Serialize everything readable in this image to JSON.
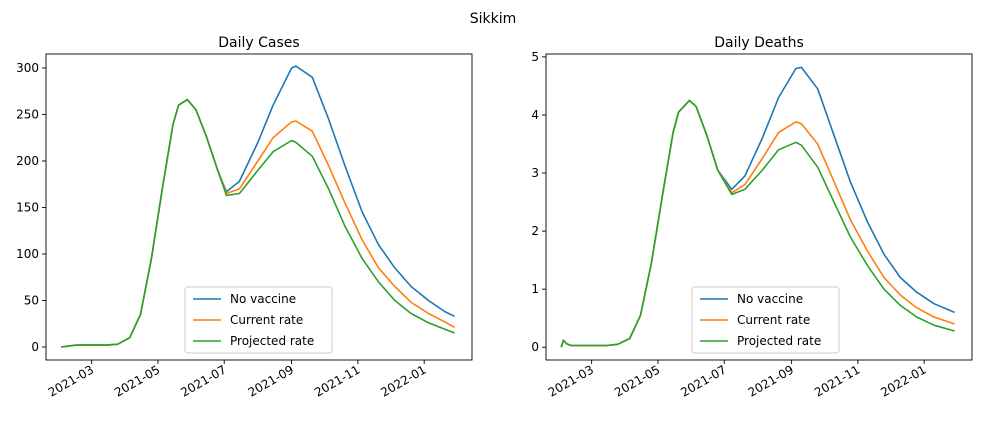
{
  "suptitle": "Sikkim",
  "legend_labels": [
    "No vaccine",
    "Current rate",
    "Projected rate"
  ],
  "colors": {
    "no_vaccine": "#1f77b4",
    "current_rate": "#ff7f0e",
    "projected_rate": "#2ca02c"
  },
  "chart_data": [
    {
      "type": "line",
      "title": "Daily Cases",
      "xlabel": "",
      "ylabel": "",
      "ylim": [
        -14,
        315
      ],
      "yticks": [
        0,
        50,
        100,
        150,
        200,
        250,
        300
      ],
      "xlim": [
        "2021-01-18",
        "2022-02-14"
      ],
      "xticks": [
        "2021-03",
        "2021-05",
        "2021-07",
        "2021-09",
        "2021-11",
        "2022-01"
      ],
      "x": [
        "2021-02-01",
        "2021-02-15",
        "2021-03-01",
        "2021-03-15",
        "2021-03-25",
        "2021-04-05",
        "2021-04-15",
        "2021-04-25",
        "2021-05-05",
        "2021-05-15",
        "2021-05-20",
        "2021-05-28",
        "2021-06-05",
        "2021-06-15",
        "2021-06-25",
        "2021-07-03",
        "2021-07-15",
        "2021-08-01",
        "2021-08-15",
        "2021-09-01",
        "2021-09-05",
        "2021-09-20",
        "2021-10-05",
        "2021-10-20",
        "2021-11-05",
        "2021-11-20",
        "2021-12-05",
        "2021-12-20",
        "2022-01-05",
        "2022-01-20",
        "2022-01-29"
      ],
      "series": [
        {
          "name": "No vaccine",
          "values": [
            0,
            2,
            2,
            2,
            3,
            10,
            35,
            95,
            170,
            240,
            260,
            266,
            255,
            225,
            190,
            167,
            178,
            220,
            260,
            300,
            302,
            290,
            245,
            195,
            145,
            110,
            85,
            65,
            50,
            38,
            33
          ]
        },
        {
          "name": "Current rate",
          "values": [
            0,
            2,
            2,
            2,
            3,
            10,
            35,
            95,
            170,
            240,
            260,
            266,
            255,
            225,
            190,
            165,
            170,
            200,
            225,
            242,
            243,
            232,
            195,
            155,
            115,
            85,
            65,
            48,
            36,
            27,
            21
          ]
        },
        {
          "name": "Projected rate",
          "values": [
            0,
            2,
            2,
            2,
            3,
            10,
            35,
            95,
            170,
            240,
            260,
            266,
            255,
            225,
            190,
            163,
            165,
            190,
            210,
            222,
            220,
            205,
            170,
            130,
            95,
            70,
            50,
            36,
            26,
            19,
            15
          ]
        }
      ],
      "legend": "lower center",
      "grid": false
    },
    {
      "type": "line",
      "title": "Daily Deaths",
      "xlabel": "",
      "ylabel": "",
      "ylim": [
        -0.22,
        5.05
      ],
      "yticks": [
        0,
        1,
        2,
        3,
        4,
        5
      ],
      "xlim": [
        "2021-01-18",
        "2022-02-14"
      ],
      "xticks": [
        "2021-03",
        "2021-05",
        "2021-07",
        "2021-09",
        "2021-11",
        "2022-01"
      ],
      "x": [
        "2021-02-01",
        "2021-02-03",
        "2021-02-06",
        "2021-02-10",
        "2021-02-15",
        "2021-03-01",
        "2021-03-15",
        "2021-03-25",
        "2021-04-05",
        "2021-04-15",
        "2021-04-25",
        "2021-05-05",
        "2021-05-15",
        "2021-05-20",
        "2021-05-30",
        "2021-06-05",
        "2021-06-15",
        "2021-06-25",
        "2021-07-08",
        "2021-07-20",
        "2021-08-05",
        "2021-08-20",
        "2021-09-05",
        "2021-09-10",
        "2021-09-25",
        "2021-10-10",
        "2021-10-25",
        "2021-11-10",
        "2021-11-25",
        "2021-12-10",
        "2021-12-25",
        "2022-01-10",
        "2022-01-29"
      ],
      "series": [
        {
          "name": "No vaccine",
          "values": [
            0,
            0.12,
            0.06,
            0.03,
            0.03,
            0.03,
            0.03,
            0.05,
            0.15,
            0.55,
            1.45,
            2.6,
            3.7,
            4.05,
            4.25,
            4.15,
            3.65,
            3.05,
            2.72,
            2.95,
            3.6,
            4.3,
            4.8,
            4.82,
            4.45,
            3.65,
            2.85,
            2.15,
            1.6,
            1.2,
            0.95,
            0.75,
            0.6
          ]
        },
        {
          "name": "Current rate",
          "values": [
            0,
            0.12,
            0.06,
            0.03,
            0.03,
            0.03,
            0.03,
            0.05,
            0.15,
            0.55,
            1.45,
            2.6,
            3.7,
            4.05,
            4.25,
            4.15,
            3.65,
            3.05,
            2.66,
            2.8,
            3.25,
            3.7,
            3.88,
            3.85,
            3.5,
            2.85,
            2.2,
            1.65,
            1.2,
            0.9,
            0.68,
            0.52,
            0.4
          ]
        },
        {
          "name": "Projected rate",
          "values": [
            0,
            0.12,
            0.06,
            0.03,
            0.03,
            0.03,
            0.03,
            0.05,
            0.15,
            0.55,
            1.45,
            2.6,
            3.7,
            4.05,
            4.25,
            4.15,
            3.65,
            3.05,
            2.63,
            2.72,
            3.05,
            3.4,
            3.53,
            3.48,
            3.1,
            2.5,
            1.9,
            1.4,
            1.0,
            0.72,
            0.52,
            0.38,
            0.28
          ]
        }
      ],
      "legend": "lower center",
      "grid": false
    }
  ]
}
